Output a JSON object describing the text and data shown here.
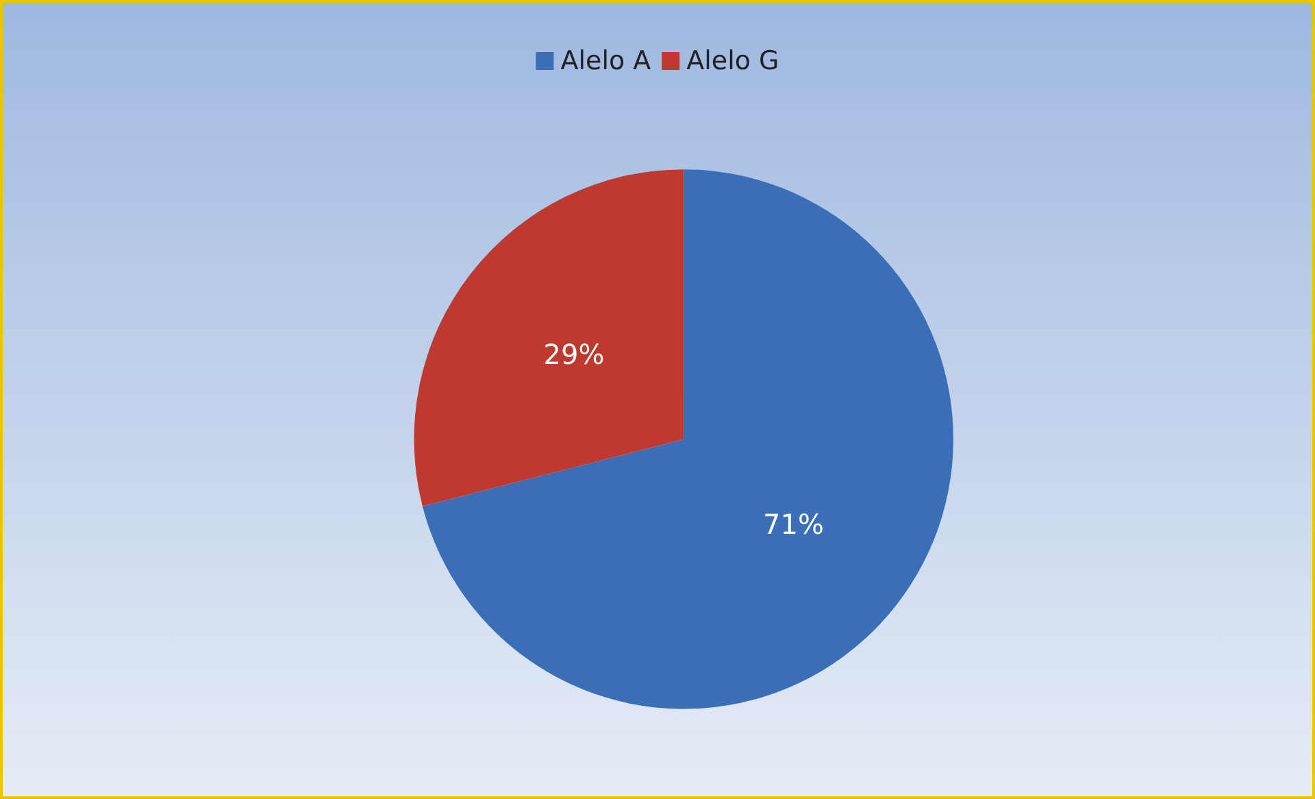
{
  "chart_data": {
    "type": "pie",
    "categories": [
      "Alelo A",
      "Alelo G"
    ],
    "values": [
      71,
      29
    ],
    "colors": [
      "#3a6fb8",
      "#c0392f"
    ],
    "value_labels": [
      "71%",
      "29%"
    ],
    "legend": "top"
  }
}
